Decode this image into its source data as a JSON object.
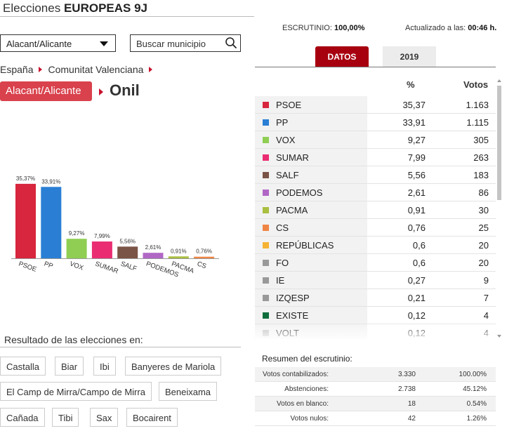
{
  "header": {
    "title_prefix": "Elecciones",
    "title_bold": "EUROPEAS 9J"
  },
  "province_select": {
    "value": "Alacant/Alicante"
  },
  "search": {
    "placeholder": "Buscar municipio"
  },
  "breadcrumb": {
    "items": [
      "España",
      "Comunitat Valenciana"
    ]
  },
  "province_button": {
    "label": "Alacant/Alicante"
  },
  "municipality": {
    "name": "Onil"
  },
  "meta": {
    "escrutinio_label": "ESCRUTINIO:",
    "escrutinio_value": "100,00%",
    "updated_label": "Actualizado a las:",
    "updated_value": "00:46 h."
  },
  "tabs": [
    {
      "label": "DATOS",
      "active": true
    },
    {
      "label": "2019",
      "active": false
    }
  ],
  "table": {
    "col_pct": "%",
    "col_votes": "Votos",
    "rows": [
      {
        "party": "PSOE",
        "pct": "35,37",
        "votes": "1.163",
        "color": "#d7263d"
      },
      {
        "party": "PP",
        "pct": "33,91",
        "votes": "1.115",
        "color": "#2a7fd4"
      },
      {
        "party": "VOX",
        "pct": "9,27",
        "votes": "305",
        "color": "#8fce52"
      },
      {
        "party": "SUMAR",
        "pct": "7,99",
        "votes": "263",
        "color": "#ea2d72"
      },
      {
        "party": "SALF",
        "pct": "5,56",
        "votes": "183",
        "color": "#7a5446"
      },
      {
        "party": "PODEMOS",
        "pct": "2,61",
        "votes": "86",
        "color": "#b167c5"
      },
      {
        "party": "PACMA",
        "pct": "0,91",
        "votes": "30",
        "color": "#a9bf3f"
      },
      {
        "party": "CS",
        "pct": "0,76",
        "votes": "25",
        "color": "#ef8545"
      },
      {
        "party": "REPÚBLICAS",
        "pct": "0,6",
        "votes": "20",
        "color": "#f5b335"
      },
      {
        "party": "FO",
        "pct": "0,6",
        "votes": "20",
        "color": "#999999"
      },
      {
        "party": "IE",
        "pct": "0,27",
        "votes": "9",
        "color": "#999999"
      },
      {
        "party": "IZQESP",
        "pct": "0,21",
        "votes": "7",
        "color": "#999999"
      },
      {
        "party": "EXISTE",
        "pct": "0,12",
        "votes": "4",
        "color": "#0e6e3b"
      },
      {
        "party": "VOLT",
        "pct": "0,12",
        "votes": "4",
        "color": "#bbbbbb"
      }
    ]
  },
  "summary": {
    "title": "Resumen del escrutinio:",
    "rows": [
      {
        "label": "Votos contabilizados:",
        "value": "3.330",
        "pct": "100.00%"
      },
      {
        "label": "Abstenciones:",
        "value": "2.738",
        "pct": "45.12%"
      },
      {
        "label": "Votos en blanco:",
        "value": "18",
        "pct": "0.54%"
      },
      {
        "label": "Votos nulos:",
        "value": "42",
        "pct": "1.26%"
      }
    ]
  },
  "results_section": {
    "label": "Resultado de las elecciones en:",
    "towns": [
      "Castalla",
      "Biar",
      "Ibi",
      "Banyeres de Mariola",
      "El Camp de Mirra/Campo de Mirra",
      "Beneixama",
      "Cañada",
      "Tibi",
      "Sax",
      "Bocairent"
    ]
  },
  "chart_data": {
    "type": "bar",
    "categories": [
      "PSOE",
      "PP",
      "VOX",
      "SUMAR",
      "SALF",
      "PODEMOS",
      "PACMA",
      "CS"
    ],
    "values": [
      35.37,
      33.91,
      9.27,
      7.99,
      5.56,
      2.61,
      0.91,
      0.76
    ],
    "value_labels": [
      "35,37%",
      "33,91%",
      "9,27%",
      "7,99%",
      "5,56%",
      "2,61%",
      "0,91%",
      "0,76%"
    ],
    "colors": [
      "#d7263d",
      "#2a7fd4",
      "#8fce52",
      "#ea2d72",
      "#7a5446",
      "#b167c5",
      "#a9bf3f",
      "#ef8545"
    ],
    "title": "",
    "xlabel": "",
    "ylabel": "",
    "ylim": [
      0,
      40
    ],
    "grid": false
  }
}
